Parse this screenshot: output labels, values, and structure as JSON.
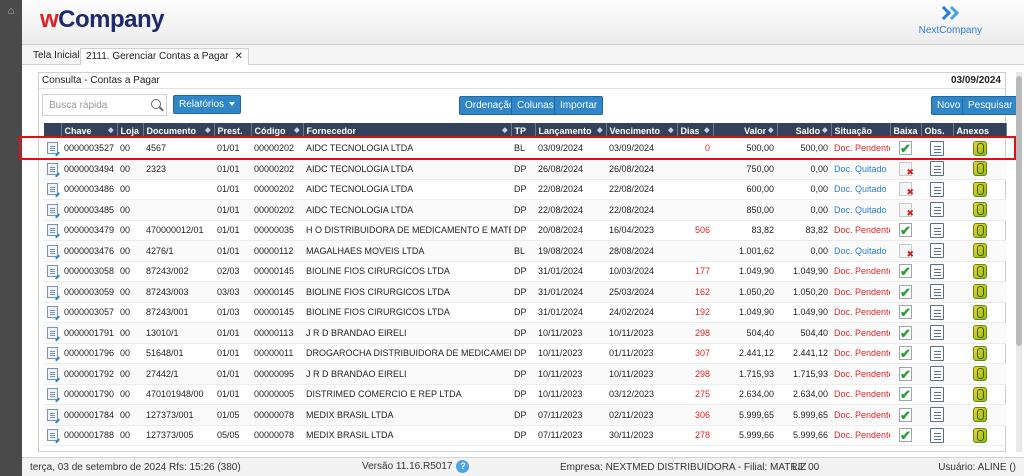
{
  "app": {
    "logo_w": "w",
    "logo_rest": "Company",
    "partner_logo": "NextCompany"
  },
  "tabs": [
    {
      "label": "Tela Inicial",
      "active": false
    },
    {
      "label": "2111. Gerenciar Contas a Pagar",
      "active": true,
      "close": "✕"
    }
  ],
  "panel": {
    "title": "Consulta - Contas a Pagar",
    "date": "03/09/2024"
  },
  "toolbar": {
    "search_placeholder": "Busca rápida",
    "relatorios": "Relatórios",
    "ordenacao": "Ordenação",
    "colunas": "Colunas",
    "importar": "Importar",
    "novo": "Novo",
    "pesquisar": "Pesquisar"
  },
  "table": {
    "columns": [
      "Chave",
      "Loja",
      "Documento",
      "Prest.",
      "Código",
      "Fornecedor",
      "TP",
      "Lançamento",
      "Vencimento",
      "Dias",
      "Valor",
      "Saldo",
      "Situação",
      "Baixa",
      "Obs.",
      "Anexos"
    ],
    "rows": [
      {
        "chave": "0000003527",
        "loja": "00",
        "documento": "4567",
        "prest": "01/01",
        "codigo": "00000202",
        "fornecedor": "AIDC TECNOLOGIA LTDA",
        "tp": "BL",
        "lancamento": "03/09/2024",
        "vencimento": "03/09/2024",
        "dias": "0",
        "valor": "500,00",
        "saldo": "500,00",
        "situacao": "Doc. Pendente",
        "baixa": "ok"
      },
      {
        "chave": "0000003494",
        "loja": "00",
        "documento": "2323",
        "prest": "01/01",
        "codigo": "00000202",
        "fornecedor": "AIDC TECNOLOGIA LTDA",
        "tp": "DP",
        "lancamento": "26/08/2024",
        "vencimento": "26/08/2024",
        "dias": "",
        "valor": "750,00",
        "saldo": "0,00",
        "situacao": "Doc. Quitado",
        "baixa": "cancel"
      },
      {
        "chave": "0000003486",
        "loja": "00",
        "documento": "",
        "prest": "01/01",
        "codigo": "00000202",
        "fornecedor": "AIDC TECNOLOGIA LTDA",
        "tp": "DP",
        "lancamento": "22/08/2024",
        "vencimento": "22/08/2024",
        "dias": "",
        "valor": "600,00",
        "saldo": "0,00",
        "situacao": "Doc. Quitado",
        "baixa": "cancel"
      },
      {
        "chave": "0000003485",
        "loja": "00",
        "documento": "",
        "prest": "01/01",
        "codigo": "00000202",
        "fornecedor": "AIDC TECNOLOGIA LTDA",
        "tp": "DP",
        "lancamento": "22/08/2024",
        "vencimento": "22/08/2024",
        "dias": "",
        "valor": "850,00",
        "saldo": "0,00",
        "situacao": "Doc. Quitado",
        "baixa": "cancel"
      },
      {
        "chave": "0000003479",
        "loja": "00",
        "documento": "470000012/01",
        "prest": "01/01",
        "codigo": "00000035",
        "fornecedor": "H O DISTRIBUIDORA DE MEDICAMENTO E MATER",
        "tp": "DP",
        "lancamento": "20/08/2024",
        "vencimento": "16/04/2023",
        "dias": "506",
        "valor": "83,82",
        "saldo": "83,82",
        "situacao": "Doc. Pendente",
        "baixa": "ok"
      },
      {
        "chave": "0000003476",
        "loja": "00",
        "documento": "4276/1",
        "prest": "01/01",
        "codigo": "00000112",
        "fornecedor": "MAGALHAES MOVEIS LTDA",
        "tp": "BL",
        "lancamento": "19/08/2024",
        "vencimento": "28/08/2024",
        "dias": "",
        "valor": "1.001,62",
        "saldo": "0,00",
        "situacao": "Doc. Quitado",
        "baixa": "cancel"
      },
      {
        "chave": "0000003058",
        "loja": "00",
        "documento": "87243/002",
        "prest": "02/03",
        "codigo": "00000145",
        "fornecedor": "BIOLINE FIOS CIRURGICOS LTDA",
        "tp": "DP",
        "lancamento": "31/01/2024",
        "vencimento": "10/03/2024",
        "dias": "177",
        "valor": "1.049,90",
        "saldo": "1.049,90",
        "situacao": "Doc. Pendente",
        "baixa": "ok"
      },
      {
        "chave": "0000003059",
        "loja": "00",
        "documento": "87243/003",
        "prest": "03/03",
        "codigo": "00000145",
        "fornecedor": "BIOLINE FIOS CIRURGICOS LTDA",
        "tp": "DP",
        "lancamento": "31/01/2024",
        "vencimento": "25/03/2024",
        "dias": "162",
        "valor": "1.050,20",
        "saldo": "1.050,20",
        "situacao": "Doc. Pendente",
        "baixa": "ok"
      },
      {
        "chave": "0000003057",
        "loja": "00",
        "documento": "87243/001",
        "prest": "01/03",
        "codigo": "00000145",
        "fornecedor": "BIOLINE FIOS CIRURGICOS LTDA",
        "tp": "DP",
        "lancamento": "31/01/2024",
        "vencimento": "24/02/2024",
        "dias": "192",
        "valor": "1.049,90",
        "saldo": "1.049,90",
        "situacao": "Doc. Pendente",
        "baixa": "ok"
      },
      {
        "chave": "0000001791",
        "loja": "00",
        "documento": "13010/1",
        "prest": "01/01",
        "codigo": "00000113",
        "fornecedor": "J R D BRANDAO EIRELI",
        "tp": "DP",
        "lancamento": "10/11/2023",
        "vencimento": "10/11/2023",
        "dias": "298",
        "valor": "504,40",
        "saldo": "504,40",
        "situacao": "Doc. Pendente",
        "baixa": "ok"
      },
      {
        "chave": "0000001796",
        "loja": "00",
        "documento": "51648/01",
        "prest": "01/01",
        "codigo": "00000011",
        "fornecedor": "DROGAROCHA DISTRIBUIDORA DE MEDICAMENTOS",
        "tp": "DP",
        "lancamento": "10/11/2023",
        "vencimento": "01/11/2023",
        "dias": "307",
        "valor": "2.441,12",
        "saldo": "2.441,12",
        "situacao": "Doc. Pendente",
        "baixa": "ok"
      },
      {
        "chave": "0000001792",
        "loja": "00",
        "documento": "27442/1",
        "prest": "01/01",
        "codigo": "00000095",
        "fornecedor": "J R D BRANDAO EIRELI",
        "tp": "DP",
        "lancamento": "10/11/2023",
        "vencimento": "10/11/2023",
        "dias": "298",
        "valor": "1.715,93",
        "saldo": "1.715,93",
        "situacao": "Doc. Pendente",
        "baixa": "ok"
      },
      {
        "chave": "0000001790",
        "loja": "00",
        "documento": "470101948/00",
        "prest": "01/01",
        "codigo": "00000005",
        "fornecedor": "DISTRIMED COMERCIO E REP LTDA",
        "tp": "DP",
        "lancamento": "10/11/2023",
        "vencimento": "03/12/2023",
        "dias": "275",
        "valor": "2.634,00",
        "saldo": "2.634,00",
        "situacao": "Doc. Pendente",
        "baixa": "ok"
      },
      {
        "chave": "0000001784",
        "loja": "00",
        "documento": "127373/001",
        "prest": "01/05",
        "codigo": "00000078",
        "fornecedor": "MEDIX BRASIL LTDA",
        "tp": "DP",
        "lancamento": "07/11/2023",
        "vencimento": "02/11/2023",
        "dias": "306",
        "valor": "5.999,65",
        "saldo": "5.999,65",
        "situacao": "Doc. Pendente",
        "baixa": "ok"
      },
      {
        "chave": "0000001788",
        "loja": "00",
        "documento": "127373/005",
        "prest": "05/05",
        "codigo": "00000078",
        "fornecedor": "MEDIX BRASIL LTDA",
        "tp": "DP",
        "lancamento": "07/11/2023",
        "vencimento": "30/11/2023",
        "dias": "278",
        "valor": "5.999,66",
        "saldo": "5.999,66",
        "situacao": "Doc. Pendente",
        "baixa": "ok"
      }
    ]
  },
  "status": {
    "date": "terça, 03 de setembro de 2024  Rfs: 15:26 (380)",
    "version": "Versão 11.16.R5017",
    "help": "?",
    "company": "Empresa: NEXTMED DISTRIBUIDORA - Filial: MATRIZ",
    "lj": "LJ: 00",
    "user": "Usuário: ALINE ()"
  },
  "icons": {
    "home": "home-icon",
    "search": "search-icon",
    "row_doc": "document-edit-icon",
    "baixa_ok": "check-icon",
    "baixa_cancel": "cancel-icon",
    "obs": "notes-icon",
    "anexos": "attachment-icon"
  },
  "colors": {
    "header_bg": "#33425a",
    "button": "#2f86c8",
    "pendente": "#e02424",
    "quitado": "#2a7fd4",
    "highlight": "#e10f0f"
  }
}
